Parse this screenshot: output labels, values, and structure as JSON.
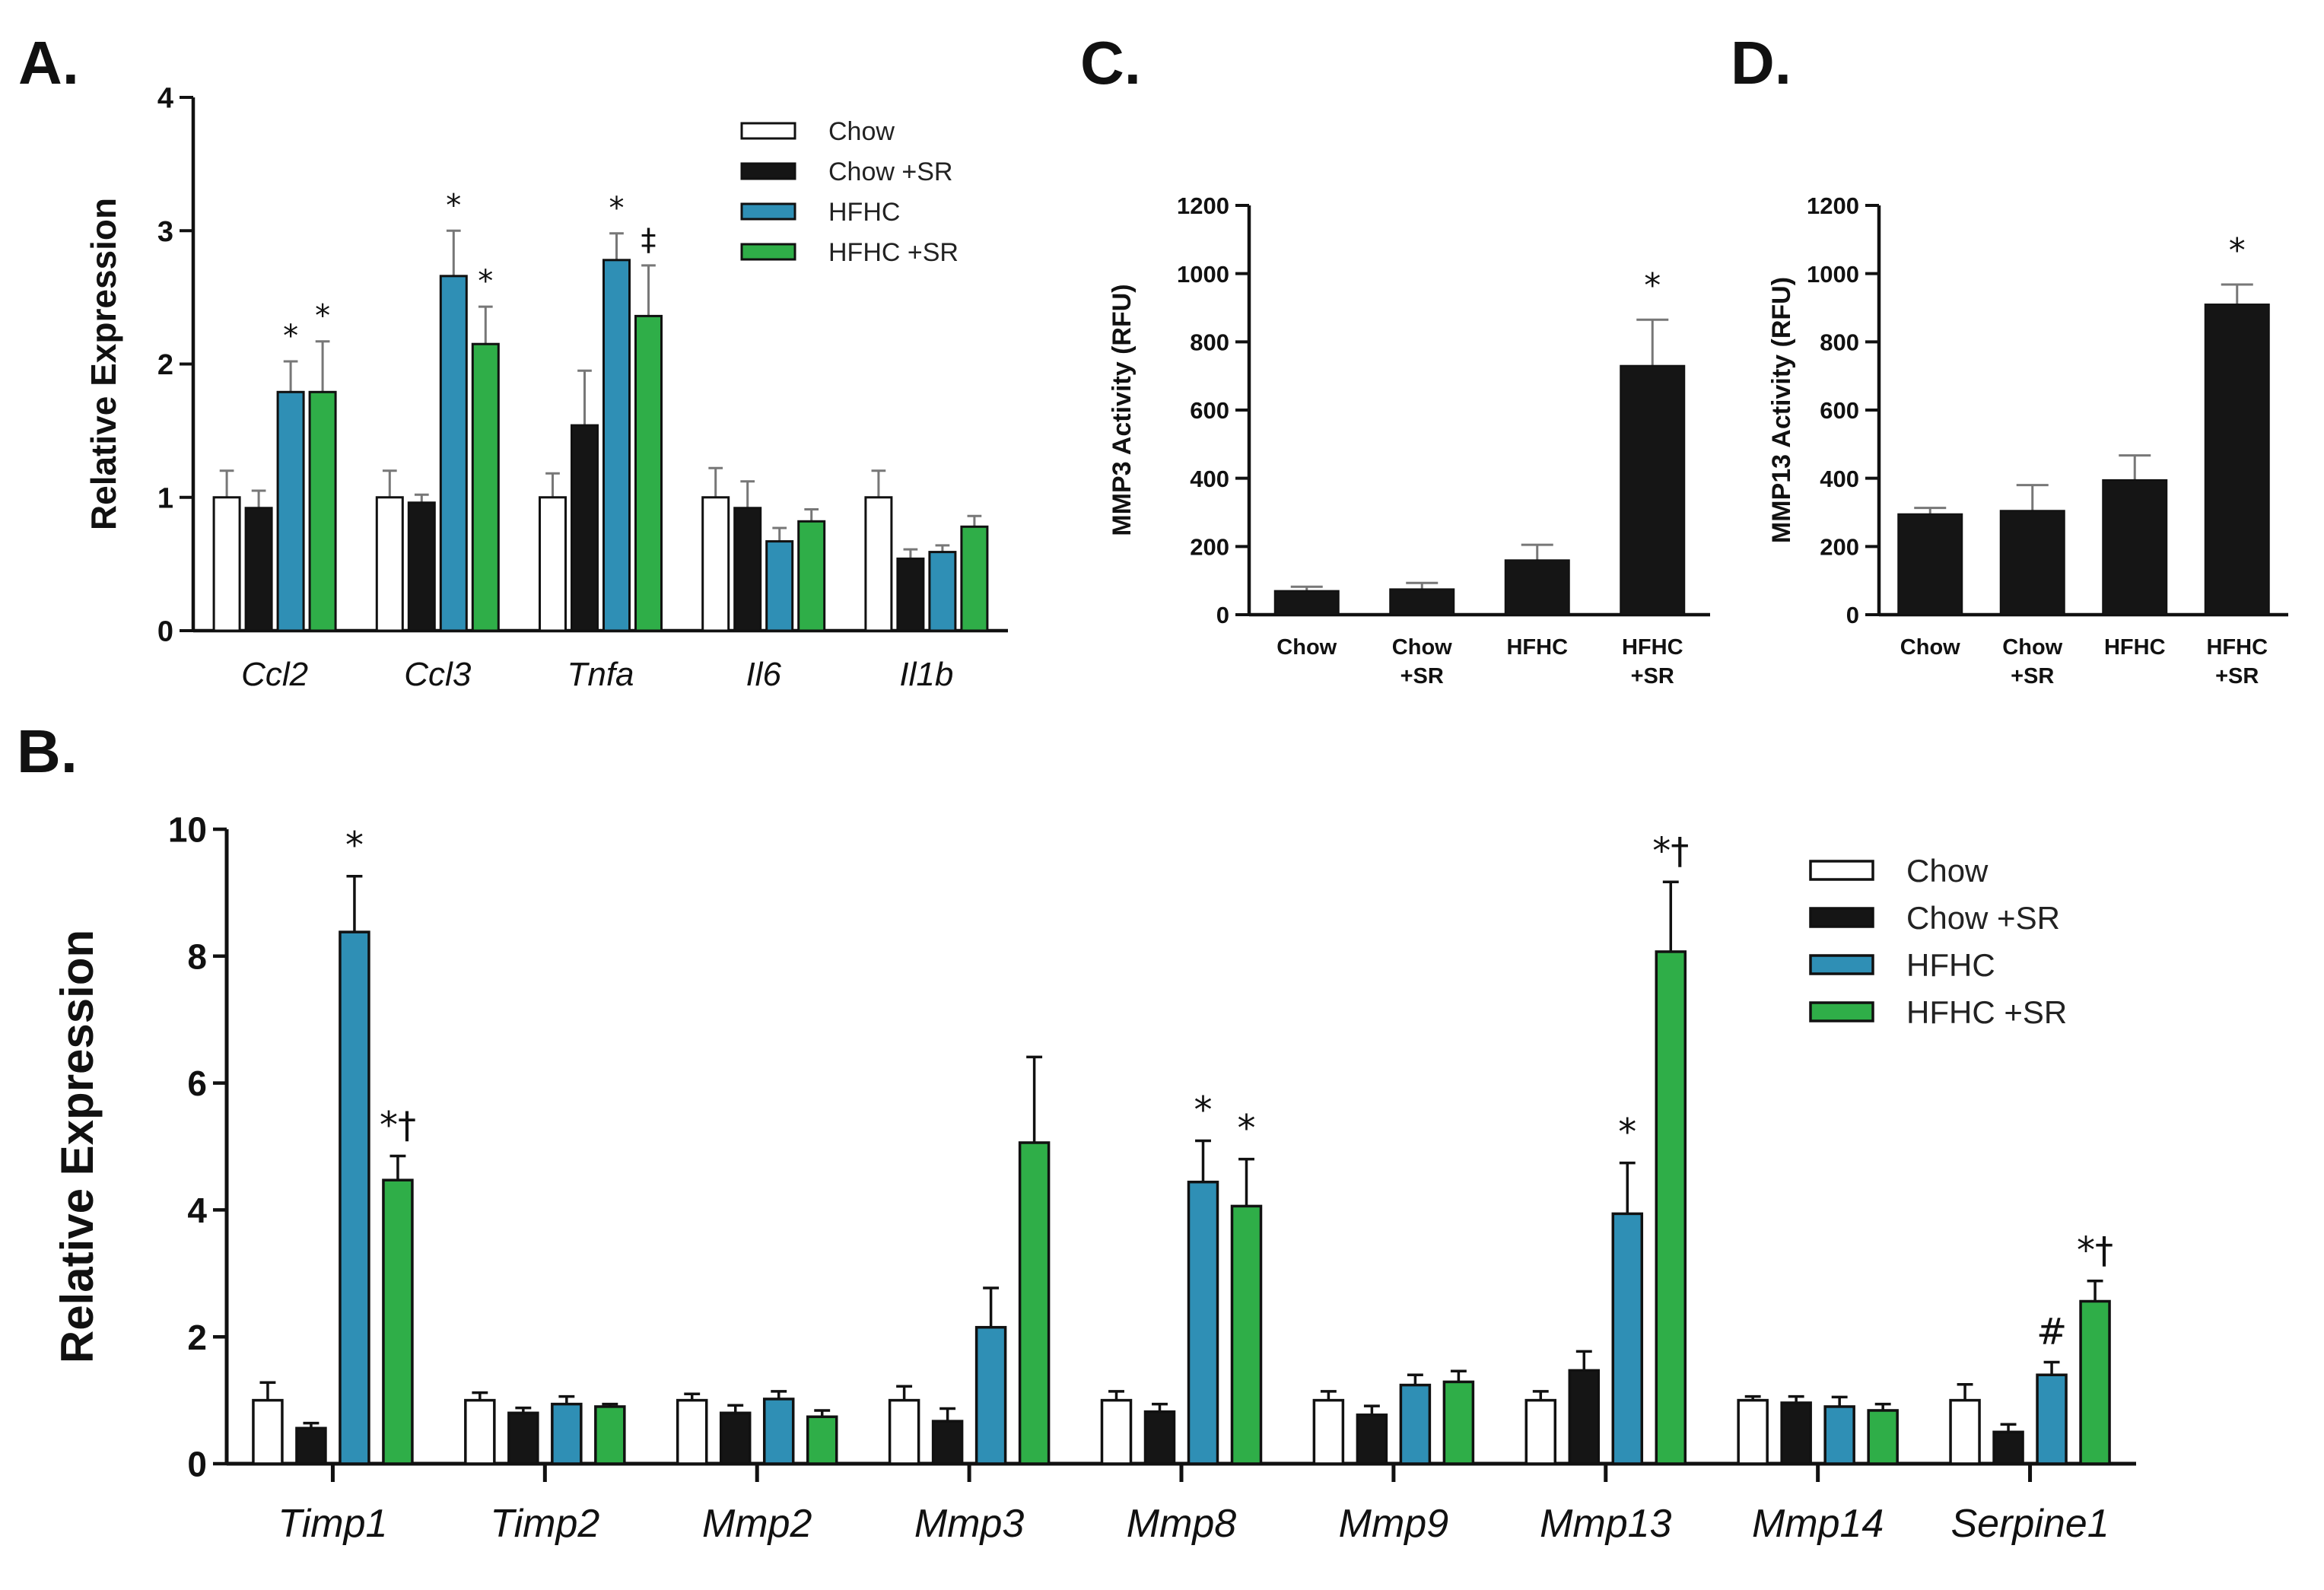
{
  "colors": {
    "Chow": "#ffffff",
    "Chow +SR": "#151515",
    "HFHC": "#2f8fb5",
    "HFHC +SR": "#2fae48",
    "axis": "#111111",
    "errorbar_light": "#777777",
    "errorbar_dark": "#111111"
  },
  "chart_data": [
    {
      "id": "A",
      "panel_label": "A.",
      "type": "bar",
      "ylabel": "Relative Expression",
      "ylim": [
        0,
        4
      ],
      "yticks": [
        0,
        1,
        2,
        3,
        4
      ],
      "categories": [
        "Ccl2",
        "Ccl3",
        "Tnfa",
        "Il6",
        "Il1b"
      ],
      "legend": [
        "Chow",
        "Chow +SR",
        "HFHC",
        "HFHC +SR"
      ],
      "legend_position": "top-right",
      "series": [
        {
          "name": "Chow",
          "values": [
            1.0,
            1.0,
            1.0,
            1.0,
            1.0
          ],
          "errors": [
            0.2,
            0.2,
            0.18,
            0.22,
            0.2
          ]
        },
        {
          "name": "Chow +SR",
          "values": [
            0.92,
            0.96,
            1.54,
            0.92,
            0.54
          ],
          "errors": [
            0.13,
            0.06,
            0.41,
            0.2,
            0.07
          ]
        },
        {
          "name": "HFHC",
          "values": [
            1.79,
            2.66,
            2.78,
            0.67,
            0.59
          ],
          "errors": [
            0.23,
            0.34,
            0.2,
            0.1,
            0.05
          ]
        },
        {
          "name": "HFHC +SR",
          "values": [
            1.79,
            2.15,
            2.36,
            0.82,
            0.78
          ],
          "errors": [
            0.38,
            0.28,
            0.38,
            0.09,
            0.08
          ]
        }
      ],
      "annotations": [
        {
          "category": "Ccl2",
          "series": "HFHC",
          "text": "*"
        },
        {
          "category": "Ccl2",
          "series": "HFHC +SR",
          "text": "*"
        },
        {
          "category": "Ccl3",
          "series": "HFHC",
          "text": "*"
        },
        {
          "category": "Ccl3",
          "series": "HFHC +SR",
          "text": "*"
        },
        {
          "category": "Tnfa",
          "series": "HFHC",
          "text": "*"
        },
        {
          "category": "Tnfa",
          "series": "HFHC +SR",
          "text": "‡"
        }
      ]
    },
    {
      "id": "C",
      "panel_label": "C.",
      "type": "bar",
      "ylabel": "MMP3 Activity (RFU)",
      "ylim": [
        0,
        1200
      ],
      "yticks": [
        0,
        200,
        400,
        600,
        800,
        1000,
        1200
      ],
      "categories": [
        [
          "Chow"
        ],
        [
          "Chow",
          "+SR"
        ],
        [
          "HFHC"
        ],
        [
          "HFHC",
          "+SR"
        ]
      ],
      "values": [
        70,
        75,
        160,
        730
      ],
      "errors": [
        12,
        18,
        45,
        135
      ],
      "annotations": [
        {
          "index": 3,
          "text": "*"
        }
      ]
    },
    {
      "id": "D",
      "panel_label": "D.",
      "type": "bar",
      "ylabel": "MMP13 Activity (RFU)",
      "ylim": [
        0,
        1200
      ],
      "yticks": [
        0,
        200,
        400,
        600,
        800,
        1000,
        1200
      ],
      "categories": [
        [
          "Chow"
        ],
        [
          "Chow",
          "+SR"
        ],
        [
          "HFHC"
        ],
        [
          "HFHC",
          "+SR"
        ]
      ],
      "values": [
        295,
        305,
        395,
        910
      ],
      "errors": [
        18,
        75,
        72,
        58
      ],
      "annotations": [
        {
          "index": 3,
          "text": "*"
        }
      ]
    },
    {
      "id": "B",
      "panel_label": "B.",
      "type": "bar",
      "ylabel": "Relative Expression",
      "ylim": [
        0,
        10
      ],
      "yticks": [
        0,
        2,
        4,
        6,
        8,
        10
      ],
      "categories": [
        "Timp1",
        "Timp2",
        "Mmp2",
        "Mmp3",
        "Mmp8",
        "Mmp9",
        "Mmp13",
        "Mmp14",
        "Serpine1"
      ],
      "legend": [
        "Chow",
        "Chow +SR",
        "HFHC",
        "HFHC +SR"
      ],
      "legend_position": "top-right",
      "series": [
        {
          "name": "Chow",
          "values": [
            1.0,
            1.0,
            1.0,
            1.0,
            1.0,
            1.0,
            1.0,
            1.0,
            1.0
          ],
          "errors": [
            0.28,
            0.12,
            0.1,
            0.22,
            0.14,
            0.14,
            0.14,
            0.06,
            0.25
          ]
        },
        {
          "name": "Chow +SR",
          "values": [
            0.56,
            0.8,
            0.8,
            0.67,
            0.82,
            0.77,
            1.47,
            0.96,
            0.5
          ],
          "errors": [
            0.08,
            0.08,
            0.12,
            0.2,
            0.12,
            0.14,
            0.3,
            0.1,
            0.12
          ]
        },
        {
          "name": "HFHC",
          "values": [
            8.38,
            0.94,
            1.02,
            2.15,
            4.44,
            1.24,
            3.94,
            0.9,
            1.4
          ],
          "errors": [
            0.88,
            0.12,
            0.12,
            0.62,
            0.65,
            0.16,
            0.8,
            0.15,
            0.2
          ]
        },
        {
          "name": "HFHC +SR",
          "values": [
            4.47,
            0.9,
            0.74,
            5.06,
            4.06,
            1.29,
            8.07,
            0.84,
            2.56
          ],
          "errors": [
            0.38,
            0.04,
            0.1,
            1.35,
            0.74,
            0.17,
            1.1,
            0.1,
            0.32
          ]
        }
      ],
      "annotations": [
        {
          "category": "Timp1",
          "series": "HFHC",
          "text": "*"
        },
        {
          "category": "Timp1",
          "series": "HFHC +SR",
          "text": "*†"
        },
        {
          "category": "Mmp8",
          "series": "HFHC",
          "text": "*"
        },
        {
          "category": "Mmp8",
          "series": "HFHC +SR",
          "text": "*"
        },
        {
          "category": "Mmp13",
          "series": "HFHC",
          "text": "*"
        },
        {
          "category": "Mmp13",
          "series": "HFHC +SR",
          "text": "*†"
        },
        {
          "category": "Serpine1",
          "series": "HFHC",
          "text": "#"
        },
        {
          "category": "Serpine1",
          "series": "HFHC +SR",
          "text": "*†"
        }
      ]
    }
  ]
}
